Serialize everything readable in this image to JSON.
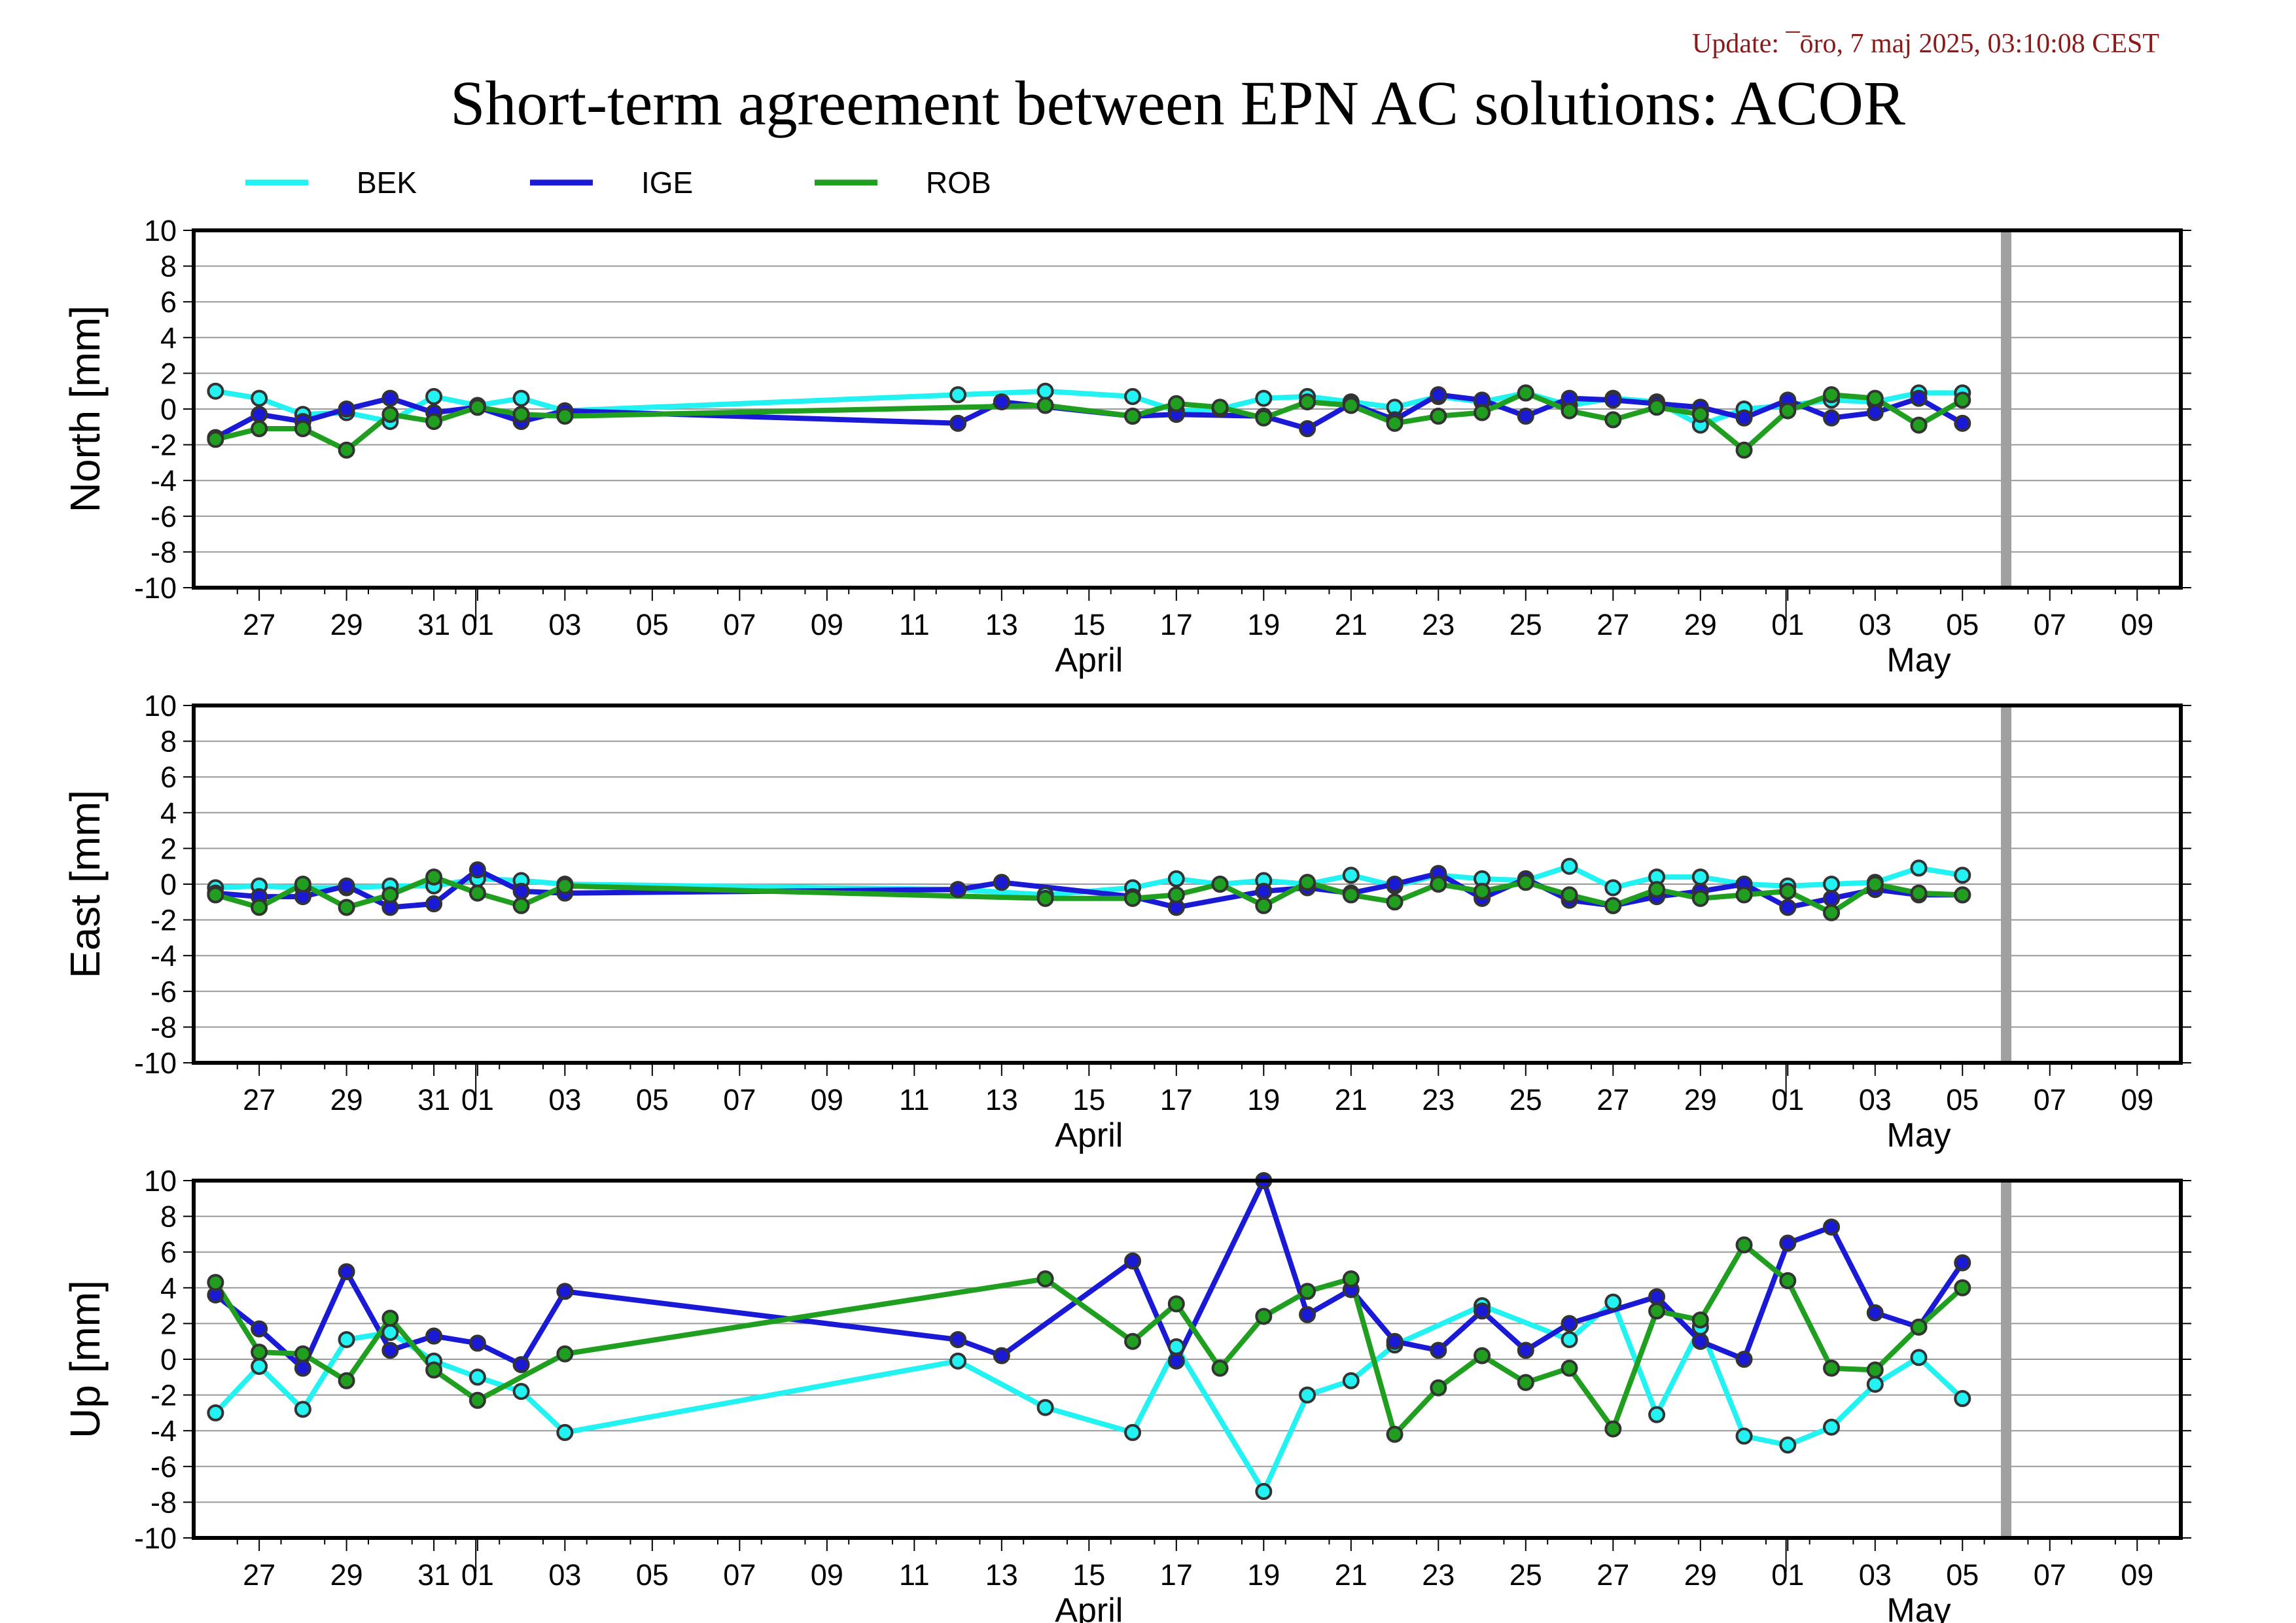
{
  "update_text": "Update: ¯ōro, 7 maj 2025, 03:10:08 CEST",
  "title": "Short-term agreement between EPN AC solutions: ACOR",
  "colors": {
    "BEK": "#22f2f2",
    "IGE": "#1a1ad6",
    "ROB": "#1f9e1f",
    "marker_line": "#333333",
    "grid": "#999999",
    "today_bar": "#a0a0a0",
    "update": "#8b1a1a"
  },
  "legend": [
    {
      "name": "BEK",
      "color": "#22f2f2"
    },
    {
      "name": "IGE",
      "color": "#1a1ad6"
    },
    {
      "name": "ROB",
      "color": "#1f9e1f"
    }
  ],
  "chart_data": {
    "type": "line",
    "x_unit": "day",
    "x_range": [
      "2025-03-25T12:00",
      "2025-05-10"
    ],
    "x_ticks": [
      {
        "date": "2025-03-27",
        "label": "27"
      },
      {
        "date": "2025-03-29",
        "label": "29"
      },
      {
        "date": "2025-03-31",
        "label": "31"
      },
      {
        "date": "2025-04-01",
        "label": "01"
      },
      {
        "date": "2025-04-03",
        "label": "03"
      },
      {
        "date": "2025-04-05",
        "label": "05"
      },
      {
        "date": "2025-04-07",
        "label": "07"
      },
      {
        "date": "2025-04-09",
        "label": "09"
      },
      {
        "date": "2025-04-11",
        "label": "11"
      },
      {
        "date": "2025-04-13",
        "label": "13"
      },
      {
        "date": "2025-04-15",
        "label": "15"
      },
      {
        "date": "2025-04-17",
        "label": "17"
      },
      {
        "date": "2025-04-19",
        "label": "19"
      },
      {
        "date": "2025-04-21",
        "label": "21"
      },
      {
        "date": "2025-04-23",
        "label": "23"
      },
      {
        "date": "2025-04-25",
        "label": "25"
      },
      {
        "date": "2025-04-27",
        "label": "27"
      },
      {
        "date": "2025-04-29",
        "label": "29"
      },
      {
        "date": "2025-05-01",
        "label": "01"
      },
      {
        "date": "2025-05-03",
        "label": "03"
      },
      {
        "date": "2025-05-05",
        "label": "05"
      },
      {
        "date": "2025-05-07",
        "label": "07"
      },
      {
        "date": "2025-05-09",
        "label": "09"
      }
    ],
    "month_labels": [
      {
        "date": "2025-04-15",
        "label": "April"
      },
      {
        "date": "2025-05-04",
        "label": "May"
      }
    ],
    "month_boundaries": [
      "2025-04-01",
      "2025-05-01"
    ],
    "today_marker": "2025-05-06",
    "ylim": [
      -10,
      10
    ],
    "yticks": [
      10,
      8,
      6,
      4,
      2,
      0,
      -2,
      -4,
      -6,
      -8,
      -10
    ],
    "grid": true,
    "panels": [
      {
        "ylabel": "North [mm]",
        "series": [
          {
            "name": "BEK",
            "x": [
              "2025-03-26",
              "2025-03-27",
              "2025-03-28",
              "2025-03-29",
              "2025-03-30",
              "2025-03-31",
              "2025-04-01",
              "2025-04-02",
              "2025-04-03",
              "2025-04-12",
              "2025-04-14",
              "2025-04-16",
              "2025-04-17",
              "2025-04-18",
              "2025-04-19",
              "2025-04-20",
              "2025-04-21",
              "2025-04-22",
              "2025-04-23",
              "2025-04-24",
              "2025-04-25",
              "2025-04-26",
              "2025-04-27",
              "2025-04-28",
              "2025-04-29",
              "2025-04-30",
              "2025-05-01",
              "2025-05-02",
              "2025-05-03",
              "2025-05-04",
              "2025-05-05"
            ],
            "y": [
              1.0,
              0.6,
              -0.3,
              -0.2,
              -0.7,
              0.7,
              0.2,
              0.6,
              -0.1,
              0.8,
              1.0,
              0.7,
              -0.1,
              0.0,
              0.6,
              0.7,
              0.4,
              0.1,
              0.7,
              0.4,
              0.9,
              0.2,
              0.6,
              0.4,
              -0.9,
              0.0,
              0.2,
              0.5,
              0.4,
              0.9,
              0.9
            ]
          },
          {
            "name": "IGE",
            "x": [
              "2025-03-26",
              "2025-03-27",
              "2025-03-28",
              "2025-03-29",
              "2025-03-30",
              "2025-03-31",
              "2025-04-01",
              "2025-04-02",
              "2025-04-03",
              "2025-04-12",
              "2025-04-13",
              "2025-04-16",
              "2025-04-17",
              "2025-04-19",
              "2025-04-20",
              "2025-04-21",
              "2025-04-22",
              "2025-04-23",
              "2025-04-24",
              "2025-04-25",
              "2025-04-26",
              "2025-04-27",
              "2025-04-28",
              "2025-04-29",
              "2025-04-30",
              "2025-05-01",
              "2025-05-02",
              "2025-05-03",
              "2025-05-04",
              "2025-05-05"
            ],
            "y": [
              -1.6,
              -0.3,
              -0.7,
              0.0,
              0.6,
              -0.2,
              0.1,
              -0.7,
              -0.1,
              -0.8,
              0.4,
              -0.4,
              -0.3,
              -0.4,
              -1.1,
              0.3,
              -0.6,
              0.8,
              0.5,
              -0.4,
              0.6,
              0.5,
              0.3,
              0.1,
              -0.5,
              0.5,
              -0.5,
              -0.2,
              0.6,
              -0.8
            ]
          },
          {
            "name": "ROB",
            "x": [
              "2025-03-26",
              "2025-03-27",
              "2025-03-28",
              "2025-03-29",
              "2025-03-30",
              "2025-03-31",
              "2025-04-01",
              "2025-04-02",
              "2025-04-03",
              "2025-04-14",
              "2025-04-16",
              "2025-04-17",
              "2025-04-18",
              "2025-04-19",
              "2025-04-20",
              "2025-04-21",
              "2025-04-22",
              "2025-04-23",
              "2025-04-24",
              "2025-04-25",
              "2025-04-26",
              "2025-04-27",
              "2025-04-28",
              "2025-04-29",
              "2025-04-30",
              "2025-05-01",
              "2025-05-02",
              "2025-05-03",
              "2025-05-04",
              "2025-05-05"
            ],
            "y": [
              -1.7,
              -1.1,
              -1.1,
              -2.3,
              -0.3,
              -0.7,
              0.1,
              -0.3,
              -0.4,
              0.2,
              -0.4,
              0.3,
              0.1,
              -0.5,
              0.4,
              0.2,
              -0.8,
              -0.4,
              -0.2,
              0.9,
              -0.1,
              -0.6,
              0.1,
              -0.3,
              -2.3,
              -0.1,
              0.8,
              0.6,
              -0.9,
              0.5
            ]
          }
        ]
      },
      {
        "ylabel": "East [mm]",
        "series": [
          {
            "name": "BEK",
            "x": [
              "2025-03-26",
              "2025-03-27",
              "2025-03-28",
              "2025-03-29",
              "2025-03-30",
              "2025-03-31",
              "2025-04-01",
              "2025-04-02",
              "2025-04-03",
              "2025-04-12",
              "2025-04-14",
              "2025-04-16",
              "2025-04-17",
              "2025-04-18",
              "2025-04-19",
              "2025-04-20",
              "2025-04-21",
              "2025-04-22",
              "2025-04-23",
              "2025-04-24",
              "2025-04-25",
              "2025-04-26",
              "2025-04-27",
              "2025-04-28",
              "2025-04-29",
              "2025-04-30",
              "2025-05-01",
              "2025-05-02",
              "2025-05-03",
              "2025-05-04",
              "2025-05-05"
            ],
            "y": [
              -0.2,
              -0.1,
              -0.2,
              -0.2,
              -0.1,
              -0.1,
              0.3,
              0.2,
              0.0,
              -0.3,
              -0.6,
              -0.2,
              0.3,
              0.0,
              0.2,
              0.0,
              0.5,
              -0.1,
              0.5,
              0.3,
              0.2,
              1.0,
              -0.2,
              0.4,
              0.4,
              0.0,
              -0.1,
              0.0,
              0.1,
              0.9,
              0.5
            ]
          },
          {
            "name": "IGE",
            "x": [
              "2025-03-26",
              "2025-03-27",
              "2025-03-28",
              "2025-03-29",
              "2025-03-30",
              "2025-03-31",
              "2025-04-01",
              "2025-04-02",
              "2025-04-03",
              "2025-04-12",
              "2025-04-13",
              "2025-04-16",
              "2025-04-17",
              "2025-04-19",
              "2025-04-20",
              "2025-04-21",
              "2025-04-22",
              "2025-04-23",
              "2025-04-24",
              "2025-04-25",
              "2025-04-26",
              "2025-04-27",
              "2025-04-28",
              "2025-04-29",
              "2025-04-30",
              "2025-05-01",
              "2025-05-02",
              "2025-05-03",
              "2025-05-04",
              "2025-05-05"
            ],
            "y": [
              -0.5,
              -0.7,
              -0.7,
              -0.1,
              -1.3,
              -1.1,
              0.8,
              -0.4,
              -0.5,
              -0.3,
              0.1,
              -0.7,
              -1.3,
              -0.4,
              -0.2,
              -0.5,
              0.0,
              0.6,
              -0.8,
              0.3,
              -0.9,
              -1.2,
              -0.7,
              -0.4,
              0.0,
              -1.3,
              -0.8,
              -0.3,
              -0.6,
              -0.6
            ]
          },
          {
            "name": "ROB",
            "x": [
              "2025-03-26",
              "2025-03-27",
              "2025-03-28",
              "2025-03-29",
              "2025-03-30",
              "2025-03-31",
              "2025-04-01",
              "2025-04-02",
              "2025-04-03",
              "2025-04-14",
              "2025-04-16",
              "2025-04-17",
              "2025-04-18",
              "2025-04-19",
              "2025-04-20",
              "2025-04-21",
              "2025-04-22",
              "2025-04-23",
              "2025-04-24",
              "2025-04-25",
              "2025-04-26",
              "2025-04-27",
              "2025-04-28",
              "2025-04-29",
              "2025-04-30",
              "2025-05-01",
              "2025-05-02",
              "2025-05-03",
              "2025-05-04",
              "2025-05-05"
            ],
            "y": [
              -0.6,
              -1.3,
              0.0,
              -1.3,
              -0.6,
              0.4,
              -0.5,
              -1.2,
              -0.1,
              -0.8,
              -0.8,
              -0.6,
              0.0,
              -1.2,
              0.1,
              -0.6,
              -1.0,
              0.0,
              -0.4,
              0.1,
              -0.6,
              -1.2,
              -0.3,
              -0.8,
              -0.6,
              -0.4,
              -1.6,
              0.0,
              -0.5,
              -0.6
            ]
          }
        ]
      },
      {
        "ylabel": "Up [mm]",
        "series": [
          {
            "name": "BEK",
            "x": [
              "2025-03-26",
              "2025-03-27",
              "2025-03-28",
              "2025-03-29",
              "2025-03-30",
              "2025-03-31",
              "2025-04-01",
              "2025-04-02",
              "2025-04-03",
              "2025-04-12",
              "2025-04-14",
              "2025-04-16",
              "2025-04-17",
              "2025-04-19",
              "2025-04-20",
              "2025-04-21",
              "2025-04-22",
              "2025-04-24",
              "2025-04-26",
              "2025-04-27",
              "2025-04-28",
              "2025-04-29",
              "2025-04-30",
              "2025-05-01",
              "2025-05-02",
              "2025-05-03",
              "2025-05-04",
              "2025-05-05"
            ],
            "y": [
              -3.0,
              -0.4,
              -2.8,
              1.1,
              1.5,
              -0.1,
              -1.0,
              -1.8,
              -4.1,
              -0.1,
              -2.7,
              -4.1,
              0.7,
              -7.4,
              -2.0,
              -1.2,
              0.8,
              3.0,
              1.1,
              3.2,
              -3.1,
              1.8,
              -4.3,
              -4.8,
              -3.8,
              -1.4,
              0.1,
              -2.2
            ]
          },
          {
            "name": "IGE",
            "x": [
              "2025-03-26",
              "2025-03-27",
              "2025-03-28",
              "2025-03-29",
              "2025-03-30",
              "2025-03-31",
              "2025-04-01",
              "2025-04-02",
              "2025-04-03",
              "2025-04-12",
              "2025-04-13",
              "2025-04-16",
              "2025-04-17",
              "2025-04-19",
              "2025-04-20",
              "2025-04-21",
              "2025-04-22",
              "2025-04-23",
              "2025-04-24",
              "2025-04-25",
              "2025-04-26",
              "2025-04-28",
              "2025-04-29",
              "2025-04-30",
              "2025-05-01",
              "2025-05-02",
              "2025-05-03",
              "2025-05-04",
              "2025-05-05"
            ],
            "y": [
              3.6,
              1.7,
              -0.5,
              4.9,
              0.5,
              1.3,
              0.9,
              -0.3,
              3.8,
              1.1,
              0.2,
              5.5,
              -0.1,
              10.0,
              2.5,
              3.9,
              1.0,
              0.5,
              2.7,
              0.5,
              2.0,
              3.5,
              1.0,
              0.0,
              6.5,
              7.4,
              2.6,
              1.8,
              5.4
            ]
          },
          {
            "name": "ROB",
            "x": [
              "2025-03-26",
              "2025-03-27",
              "2025-03-28",
              "2025-03-29",
              "2025-03-30",
              "2025-03-31",
              "2025-04-01",
              "2025-04-03",
              "2025-04-14",
              "2025-04-16",
              "2025-04-17",
              "2025-04-18",
              "2025-04-19",
              "2025-04-20",
              "2025-04-21",
              "2025-04-22",
              "2025-04-23",
              "2025-04-24",
              "2025-04-25",
              "2025-04-26",
              "2025-04-27",
              "2025-04-28",
              "2025-04-29",
              "2025-04-30",
              "2025-05-01",
              "2025-05-02",
              "2025-05-03",
              "2025-05-04",
              "2025-05-05"
            ],
            "y": [
              4.3,
              0.4,
              0.3,
              -1.2,
              2.3,
              -0.6,
              -2.3,
              0.3,
              4.5,
              1.0,
              3.1,
              -0.5,
              2.4,
              3.8,
              4.5,
              -4.2,
              -1.6,
              0.2,
              -1.3,
              -0.5,
              -3.9,
              2.7,
              2.2,
              6.4,
              4.4,
              -0.5,
              -0.6,
              1.8,
              4.0
            ]
          }
        ]
      }
    ]
  }
}
